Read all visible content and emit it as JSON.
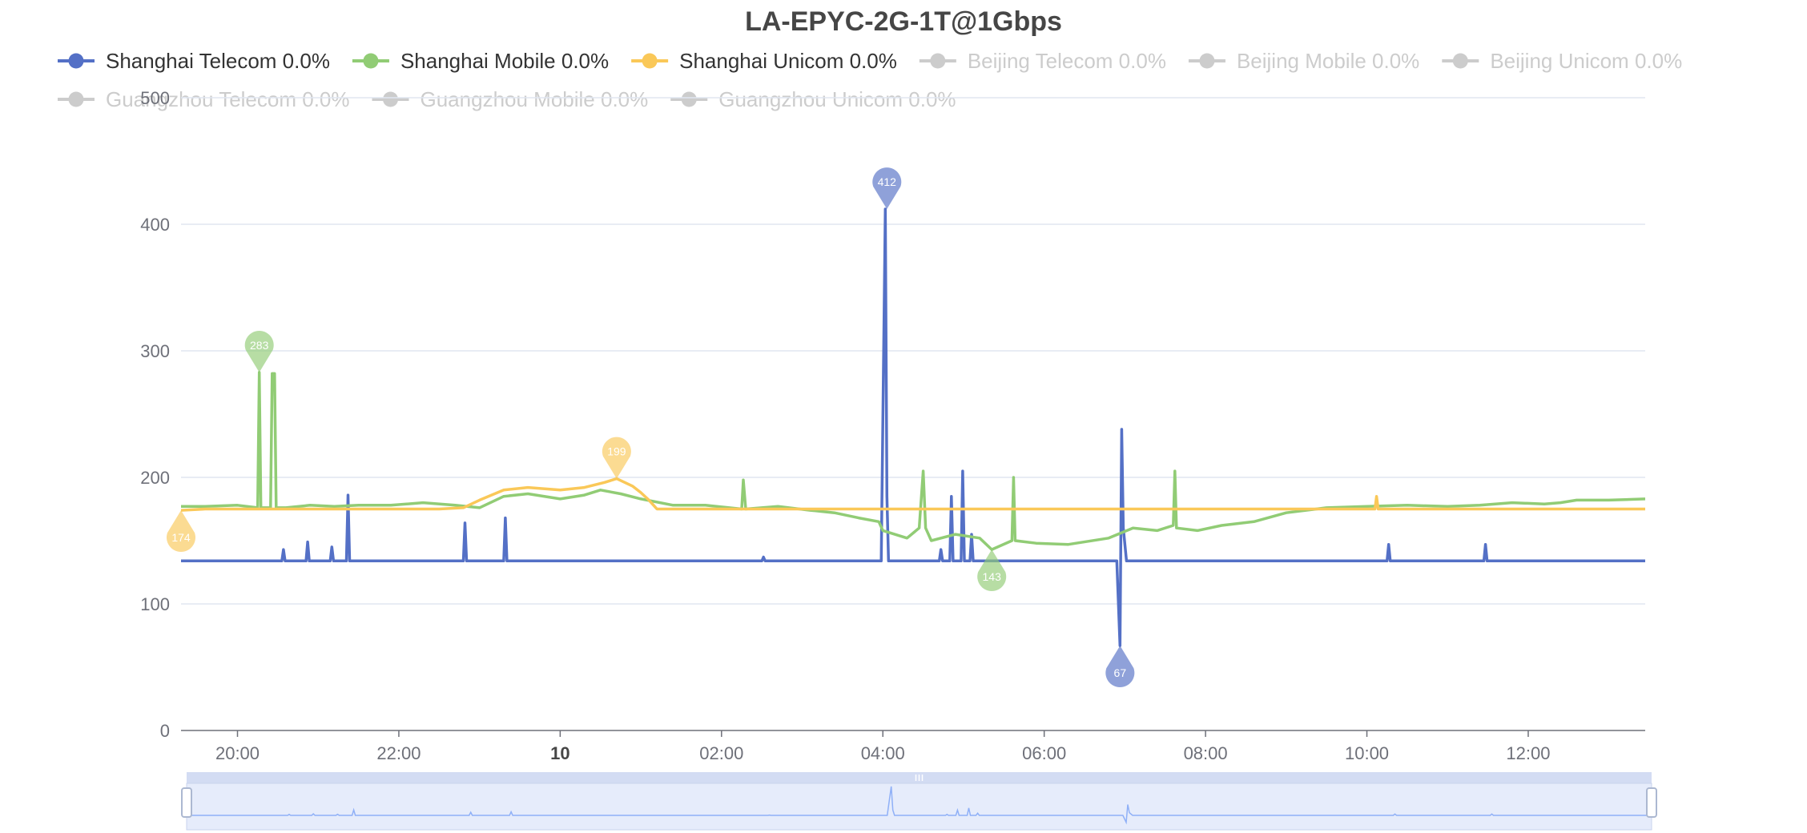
{
  "chart_data": {
    "type": "line",
    "title": "LA-EPYC-2G-1T@1Gbps",
    "xlabel": "",
    "ylabel": "",
    "ylim": [
      0,
      500
    ],
    "y_ticks": [
      "0",
      "100",
      "200",
      "300",
      "400",
      "500"
    ],
    "x_ticks": [
      {
        "label": "20:00",
        "h": 20.0,
        "bold": false
      },
      {
        "label": "22:00",
        "h": 22.0,
        "bold": false
      },
      {
        "label": "10",
        "h": 24.0,
        "bold": true
      },
      {
        "label": "02:00",
        "h": 26.0,
        "bold": false
      },
      {
        "label": "04:00",
        "h": 28.0,
        "bold": false
      },
      {
        "label": "06:00",
        "h": 30.0,
        "bold": false
      },
      {
        "label": "08:00",
        "h": 32.0,
        "bold": false
      },
      {
        "label": "10:00",
        "h": 34.0,
        "bold": false
      },
      {
        "label": "12:00",
        "h": 36.0,
        "bold": false
      }
    ],
    "x_range_hours": [
      19.3,
      37.45
    ],
    "grid": true,
    "legend_position": "top",
    "legend": [
      {
        "label": "Shanghai Telecom 0.0%",
        "color": "#5470c6",
        "active": true
      },
      {
        "label": "Shanghai Mobile 0.0%",
        "color": "#91cc75",
        "active": true
      },
      {
        "label": "Shanghai Unicom 0.0%",
        "color": "#fac858",
        "active": true
      },
      {
        "label": "Beijing Telecom 0.0%",
        "color": "#cccccc",
        "active": false
      },
      {
        "label": "Beijing Mobile 0.0%",
        "color": "#cccccc",
        "active": false
      },
      {
        "label": "Beijing Unicom 0.0%",
        "color": "#cccccc",
        "active": false
      },
      {
        "label": "Guangzhou Telecom 0.0%",
        "color": "#cccccc",
        "active": false
      },
      {
        "label": "Guangzhou Mobile 0.0%",
        "color": "#cccccc",
        "active": false
      },
      {
        "label": "Guangzhou Unicom 0.0%",
        "color": "#cccccc",
        "active": false
      }
    ],
    "series": [
      {
        "name": "Shanghai Telecom",
        "color": "#5470c6",
        "x": [
          19.3,
          20.55,
          20.57,
          20.59,
          20.85,
          20.87,
          20.89,
          21.15,
          21.17,
          21.19,
          21.35,
          21.37,
          21.39,
          22.8,
          22.82,
          22.84,
          23.3,
          23.32,
          23.34,
          26.5,
          26.52,
          26.54,
          27.98,
          28.03,
          28.05,
          28.07,
          28.12,
          28.7,
          28.72,
          28.74,
          28.83,
          28.85,
          28.87,
          28.97,
          28.99,
          29.01,
          29.08,
          29.1,
          29.12,
          30.9,
          30.94,
          30.96,
          30.98,
          31.02,
          34.25,
          34.27,
          34.29,
          35.45,
          35.47,
          35.49,
          37.45
        ],
        "y": [
          134,
          134,
          143,
          134,
          134,
          149,
          134,
          134,
          145,
          134,
          134,
          186,
          134,
          134,
          164,
          134,
          134,
          168,
          134,
          134,
          137,
          134,
          134,
          412,
          185,
          134,
          134,
          134,
          143,
          134,
          134,
          185,
          134,
          134,
          205,
          134,
          134,
          155,
          134,
          134,
          67,
          238,
          160,
          134,
          134,
          147,
          134,
          134,
          147,
          134,
          134
        ]
      },
      {
        "name": "Shanghai Mobile",
        "color": "#91cc75",
        "x": [
          19.3,
          19.6,
          20.0,
          20.25,
          20.27,
          20.29,
          20.41,
          20.43,
          20.46,
          20.48,
          20.6,
          20.9,
          21.2,
          21.5,
          21.9,
          22.3,
          22.7,
          23.0,
          23.3,
          23.6,
          24.0,
          24.3,
          24.5,
          24.75,
          25.0,
          25.4,
          25.8,
          26.25,
          26.27,
          26.3,
          26.7,
          27.1,
          27.4,
          27.7,
          27.95,
          28.0,
          28.3,
          28.45,
          28.5,
          28.53,
          28.6,
          28.9,
          29.2,
          29.35,
          29.6,
          29.62,
          29.64,
          29.9,
          30.3,
          30.8,
          31.1,
          31.4,
          31.6,
          31.62,
          31.64,
          31.9,
          32.2,
          32.6,
          33.0,
          33.5,
          34.0,
          34.5,
          35.0,
          35.4,
          35.8,
          36.2,
          36.4,
          36.6,
          37.0,
          37.45
        ],
        "y": [
          177,
          177,
          178,
          176,
          283,
          176,
          176,
          282,
          282,
          176,
          176,
          178,
          177,
          178,
          178,
          180,
          178,
          176,
          185,
          187,
          183,
          186,
          190,
          187,
          183,
          178,
          178,
          175,
          198,
          175,
          177,
          174,
          172,
          168,
          165,
          158,
          152,
          160,
          205,
          160,
          150,
          155,
          152,
          143,
          150,
          200,
          150,
          148,
          147,
          152,
          160,
          158,
          162,
          205,
          160,
          158,
          162,
          165,
          172,
          176,
          177,
          178,
          177,
          178,
          180,
          179,
          180,
          182,
          182,
          183
        ]
      },
      {
        "name": "Shanghai Unicom",
        "color": "#fac858",
        "x": [
          19.3,
          19.6,
          20.0,
          20.5,
          21.0,
          21.5,
          22.0,
          22.5,
          22.8,
          23.0,
          23.3,
          23.6,
          24.0,
          24.3,
          24.55,
          24.7,
          24.9,
          25.0,
          25.1,
          25.2,
          27.0,
          30.0,
          33.0,
          34.1,
          34.12,
          34.14,
          37.45
        ],
        "y": [
          174,
          175,
          175,
          175,
          175,
          175,
          175,
          175,
          176,
          182,
          190,
          192,
          190,
          192,
          196,
          199,
          193,
          188,
          182,
          175,
          175,
          175,
          175,
          175,
          185,
          175,
          175
        ]
      }
    ],
    "annotations": [
      {
        "label": "412",
        "series": "Shanghai Telecom",
        "x": 28.05,
        "y": 412,
        "kind": "max"
      },
      {
        "label": "67",
        "series": "Shanghai Telecom",
        "x": 30.94,
        "y": 67,
        "kind": "min"
      },
      {
        "label": "283",
        "series": "Shanghai Mobile",
        "x": 20.27,
        "y": 283,
        "kind": "max"
      },
      {
        "label": "143",
        "series": "Shanghai Mobile",
        "x": 29.35,
        "y": 143,
        "kind": "min"
      },
      {
        "label": "199",
        "series": "Shanghai Unicom",
        "x": 24.7,
        "y": 199,
        "kind": "max"
      },
      {
        "label": "174",
        "series": "Shanghai Unicom",
        "x": 19.3,
        "y": 174,
        "kind": "min"
      }
    ]
  },
  "ui": {
    "zoom_slider": {
      "start_percent": 0,
      "end_percent": 100
    }
  }
}
